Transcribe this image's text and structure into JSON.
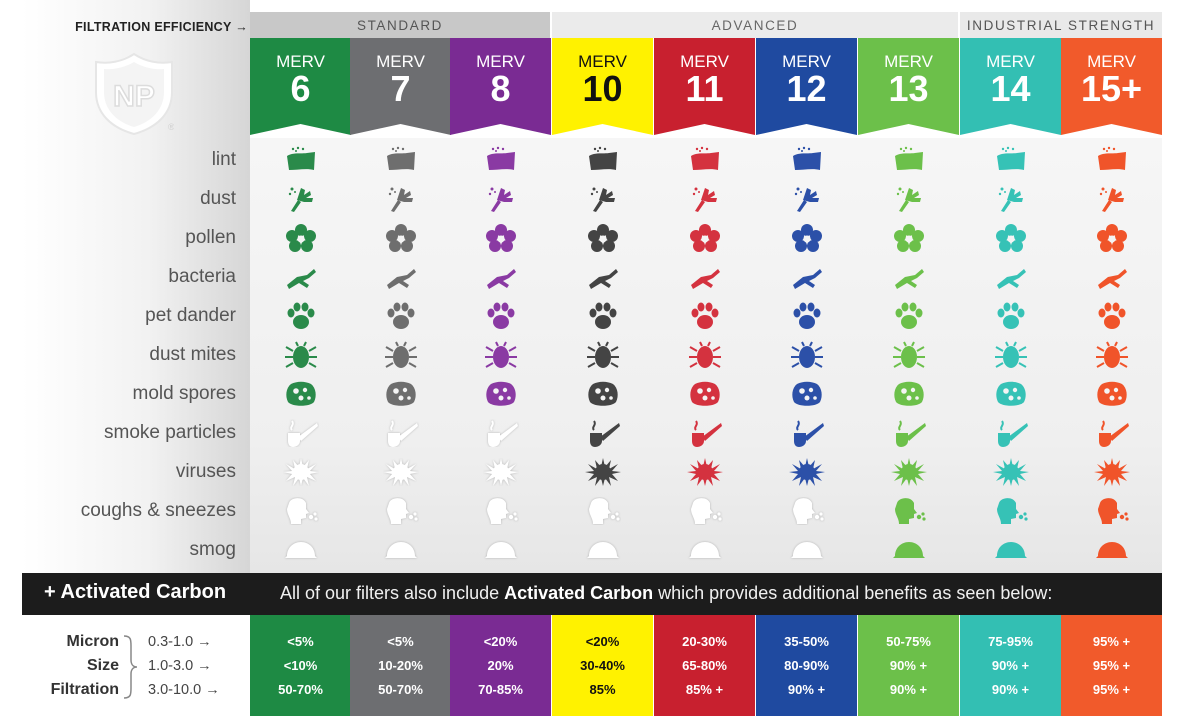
{
  "filtration_label": "FILTRATION EFFICIENCY →",
  "tiers": {
    "standard": "STANDARD",
    "advanced": "ADVANCED",
    "industrial": "INDUSTRIAL STRENGTH"
  },
  "merv_word": "MERV",
  "columns": [
    {
      "merv": "6",
      "color": "#1e8a44",
      "text_color": "#ffffff",
      "icon_color": "#2a8a4a",
      "values": [
        "<5%",
        "<10%",
        "50-70%"
      ]
    },
    {
      "merv": "7",
      "color": "#6d6e71",
      "text_color": "#ffffff",
      "icon_color": "#6e6e6e",
      "values": [
        "<5%",
        "10-20%",
        "50-70%"
      ]
    },
    {
      "merv": "8",
      "color": "#7a2b93",
      "text_color": "#ffffff",
      "icon_color": "#8a3aa3",
      "values": [
        "<20%",
        "20%",
        "70-85%"
      ]
    },
    {
      "merv": "10",
      "color": "#fff200",
      "text_color": "#111111",
      "icon_color": "#444444",
      "values": [
        "<20%",
        "30-40%",
        "85%"
      ]
    },
    {
      "merv": "11",
      "color": "#c8202f",
      "text_color": "#ffffff",
      "icon_color": "#d4323f",
      "values": [
        "20-30%",
        "65-80%",
        "85% +"
      ]
    },
    {
      "merv": "12",
      "color": "#1f4aa0",
      "text_color": "#ffffff",
      "icon_color": "#2c50a8",
      "values": [
        "35-50%",
        "80-90%",
        "90% +"
      ]
    },
    {
      "merv": "13",
      "color": "#6cc04a",
      "text_color": "#ffffff",
      "icon_color": "#6cc04a",
      "values": [
        "50-75%",
        "90% +",
        "90% +"
      ]
    },
    {
      "merv": "14",
      "color": "#33bfb3",
      "text_color": "#ffffff",
      "icon_color": "#36c2b6",
      "values": [
        "75-95%",
        "90% +",
        "90% +"
      ]
    },
    {
      "merv": "15+",
      "color": "#f15a2b",
      "text_color": "#ffffff",
      "icon_color": "#f0542a",
      "values": [
        "95% +",
        "95% +",
        "95% +"
      ]
    }
  ],
  "rows": [
    {
      "label": "lint",
      "icon": "lint-icon",
      "first_filtering_column": 0
    },
    {
      "label": "dust",
      "icon": "dust-icon",
      "first_filtering_column": 0
    },
    {
      "label": "pollen",
      "icon": "pollen-icon",
      "first_filtering_column": 0
    },
    {
      "label": "bacteria",
      "icon": "bacteria-icon",
      "first_filtering_column": 0
    },
    {
      "label": "pet dander",
      "icon": "pet-dander-icon",
      "first_filtering_column": 0
    },
    {
      "label": "dust mites",
      "icon": "dust-mites-icon",
      "first_filtering_column": 0
    },
    {
      "label": "mold spores",
      "icon": "mold-spores-icon",
      "first_filtering_column": 0
    },
    {
      "label": "smoke particles",
      "icon": "smoke-particles-icon",
      "first_filtering_column": 3
    },
    {
      "label": "viruses",
      "icon": "viruses-icon",
      "first_filtering_column": 3
    },
    {
      "label": "coughs & sneezes",
      "icon": "coughs-sneezes-icon",
      "first_filtering_column": 6
    },
    {
      "label": "smog",
      "icon": "smog-icon",
      "first_filtering_column": 6
    }
  ],
  "carbon": {
    "title": "+ Activated Carbon",
    "text_before": "All of our filters also include ",
    "text_bold": "Activated Carbon",
    "text_after": " which provides additional benefits as seen below:"
  },
  "micron": {
    "label_lines": [
      "Micron",
      "Size",
      "Filtration"
    ],
    "ranges": [
      "0.3-1.0  →",
      "1.0-3.0  →",
      "3.0-10.0  →"
    ]
  },
  "logo": {
    "text": "NP",
    "mark": "®"
  },
  "colors": {
    "inactive_icon": "#ffffff"
  }
}
